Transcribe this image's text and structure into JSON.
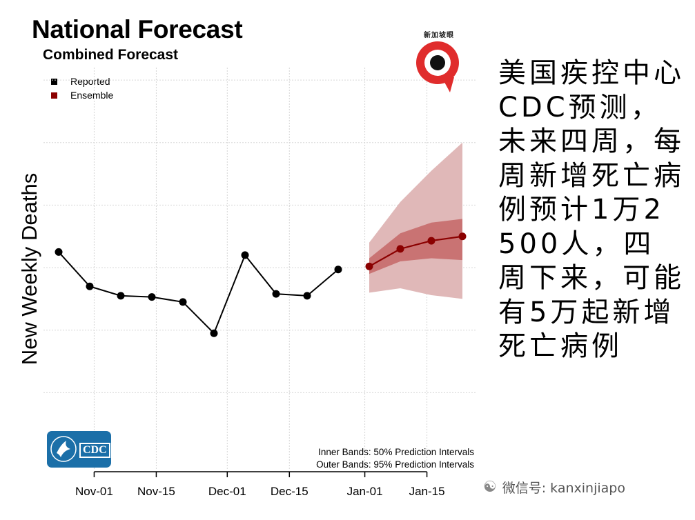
{
  "title": "National Forecast",
  "subtitle": "Combined Forecast",
  "legend": [
    {
      "label": "Reported",
      "color": "#000000"
    },
    {
      "label": "Ensemble",
      "color": "#8b0000"
    }
  ],
  "band_notes": {
    "inner": "Inner Bands: 50% Prediction Intervals",
    "outer": "Outer Bands: 95% Prediction Intervals"
  },
  "logo": {
    "text": "CDC",
    "color": "#1b6fa8"
  },
  "side_text": "美国疾控中心CDC预测，未来四周，每周新增死亡病例预计1万2500人，四周下来，可能有5万起新增死亡病例",
  "watermark": {
    "badge_text": "新加坡眼",
    "wechat_text": "微信号: kanxinjiapo",
    "icon": "wechat-icon"
  },
  "chart_data": {
    "type": "line",
    "title": "National Forecast",
    "subtitle": "Combined Forecast",
    "xlabel": "",
    "ylabel": "New Weekly Deaths",
    "x_ticks": [
      "Nov-01",
      "Nov-15",
      "Dec-01",
      "Dec-15",
      "Jan-01",
      "Jan-15"
    ],
    "y_range": [
      0,
      6.2
    ],
    "y_tick_labels_shown": false,
    "grid": true,
    "legend_position": "top-left",
    "series": [
      {
        "name": "Reported",
        "color": "#000000",
        "points": [
          {
            "x": "2020-10-24",
            "y": 3.25
          },
          {
            "x": "2020-10-31",
            "y": 2.7
          },
          {
            "x": "2020-11-07",
            "y": 2.55
          },
          {
            "x": "2020-11-14",
            "y": 2.53
          },
          {
            "x": "2020-11-21",
            "y": 2.45
          },
          {
            "x": "2020-11-28",
            "y": 1.95
          },
          {
            "x": "2020-12-05",
            "y": 3.2
          },
          {
            "x": "2020-12-12",
            "y": 2.58
          },
          {
            "x": "2020-12-19",
            "y": 2.55
          },
          {
            "x": "2020-12-26",
            "y": 2.97
          }
        ]
      },
      {
        "name": "Ensemble",
        "color": "#8b0000",
        "points": [
          {
            "x": "2021-01-02",
            "y": 3.02
          },
          {
            "x": "2021-01-09",
            "y": 3.3
          },
          {
            "x": "2021-01-16",
            "y": 3.43
          },
          {
            "x": "2021-01-23",
            "y": 3.5
          }
        ],
        "inner_band_50": [
          {
            "x": "2021-01-02",
            "low": 2.9,
            "high": 3.15
          },
          {
            "x": "2021-01-09",
            "low": 3.1,
            "high": 3.55
          },
          {
            "x": "2021-01-16",
            "low": 3.15,
            "high": 3.72
          },
          {
            "x": "2021-01-23",
            "low": 3.12,
            "high": 3.78
          }
        ],
        "outer_band_95": [
          {
            "x": "2021-01-02",
            "low": 2.6,
            "high": 3.4
          },
          {
            "x": "2021-01-09",
            "low": 2.67,
            "high": 4.05
          },
          {
            "x": "2021-01-16",
            "low": 2.56,
            "high": 4.55
          },
          {
            "x": "2021-01-23",
            "low": 2.5,
            "high": 5.0
          }
        ]
      }
    ]
  }
}
